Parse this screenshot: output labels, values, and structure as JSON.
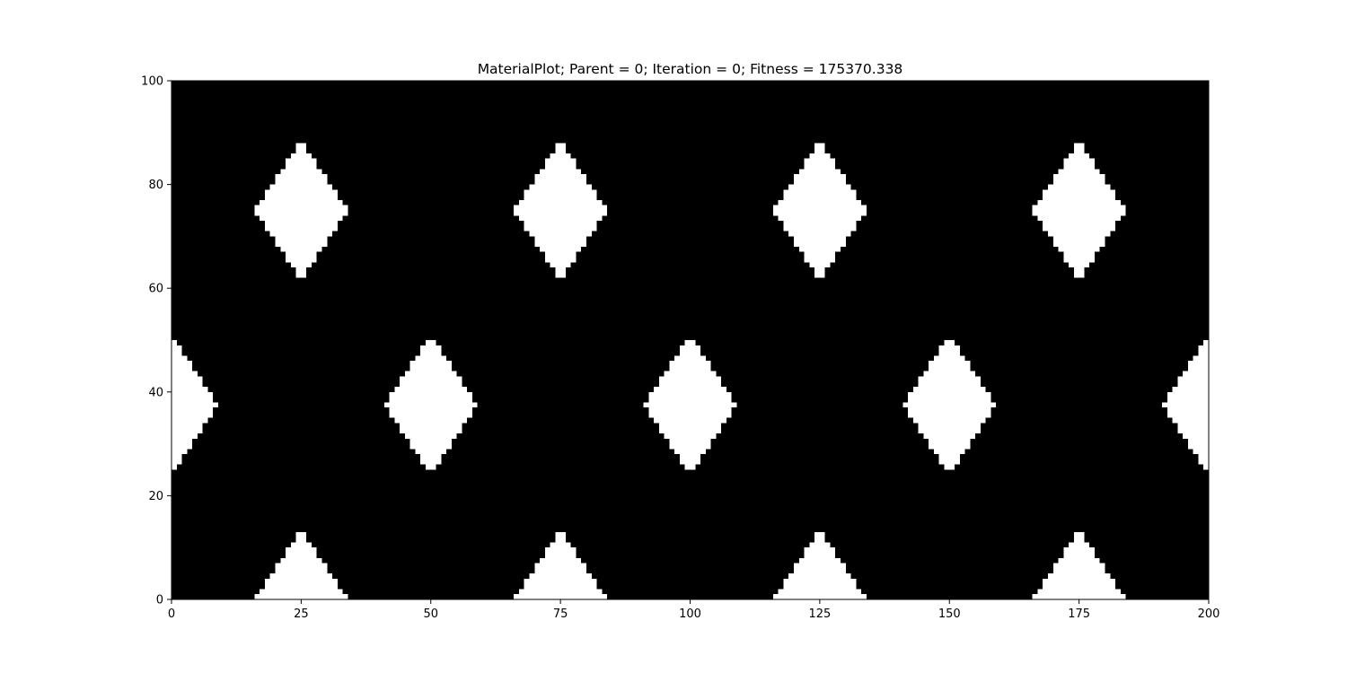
{
  "chart_data": {
    "type": "heatmap",
    "title": "MaterialPlot; Parent = 0; Iteration = 0; Fitness = 175370.338",
    "xlabel": "",
    "ylabel": "",
    "xlim": [
      0,
      200
    ],
    "ylim": [
      0,
      100
    ],
    "x_ticks": [
      "0",
      "25",
      "50",
      "75",
      "100",
      "125",
      "150",
      "175",
      "200"
    ],
    "y_ticks": [
      "0",
      "20",
      "40",
      "60",
      "80",
      "100"
    ],
    "grid": false,
    "colors": {
      "material": "#000000",
      "void": "#ffffff"
    },
    "pattern": {
      "description_source": "binary material field: diagonal lattice of solid bars",
      "lines_positive_slope_intercepts": [
        -50,
        0,
        50,
        100,
        150,
        200
      ],
      "lines_negative_slope_intercepts": [
        0,
        50,
        100,
        150,
        200,
        250
      ],
      "slope_in_data_units": 1.5,
      "bar_half_width_in_x_units": 16
    }
  }
}
